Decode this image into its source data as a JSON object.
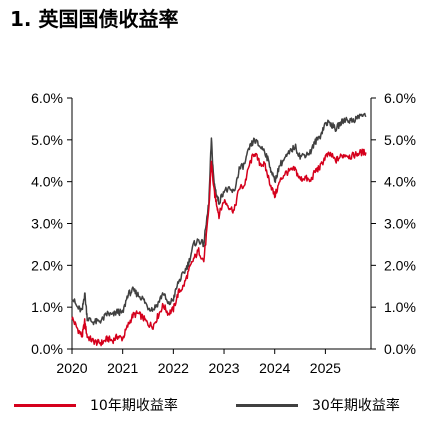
{
  "chart_data": {
    "type": "line",
    "title": "1. 英国国债收益率",
    "xlabel": "",
    "ylabel": "",
    "ylim": [
      0,
      6
    ],
    "xlim": [
      2020,
      2025.9
    ],
    "x_ticks": [
      "2020",
      "2021",
      "2022",
      "2023",
      "2024",
      "2025"
    ],
    "y_ticks_left": [
      "0.0%",
      "1.0%",
      "2.0%",
      "3.0%",
      "4.0%",
      "5.0%",
      "6.0%"
    ],
    "y_ticks_right": [
      "0.0%",
      "1.0%",
      "2.0%",
      "3.0%",
      "4.0%",
      "5.0%",
      "6.0%"
    ],
    "grid": false,
    "legend_position": "bottom",
    "x": [
      2020.0,
      2020.1,
      2020.2,
      2020.25,
      2020.3,
      2020.4,
      2020.5,
      2020.6,
      2020.7,
      2020.8,
      2020.9,
      2021.0,
      2021.1,
      2021.2,
      2021.3,
      2021.4,
      2021.5,
      2021.6,
      2021.7,
      2021.8,
      2021.9,
      2022.0,
      2022.1,
      2022.2,
      2022.3,
      2022.4,
      2022.5,
      2022.6,
      2022.7,
      2022.75,
      2022.8,
      2022.85,
      2022.9,
      2023.0,
      2023.1,
      2023.2,
      2023.3,
      2023.4,
      2023.5,
      2023.6,
      2023.7,
      2023.8,
      2023.9,
      2024.0,
      2024.1,
      2024.2,
      2024.3,
      2024.4,
      2024.5,
      2024.6,
      2024.7,
      2024.8,
      2024.9,
      2025.0,
      2025.1,
      2025.2,
      2025.3,
      2025.4,
      2025.5,
      2025.6,
      2025.7,
      2025.8
    ],
    "series": [
      {
        "name": "10年期收益率",
        "color": "#d5001c",
        "values": [
          0.75,
          0.5,
          0.3,
          0.65,
          0.3,
          0.2,
          0.15,
          0.15,
          0.25,
          0.2,
          0.3,
          0.25,
          0.55,
          0.8,
          0.85,
          0.75,
          0.6,
          0.55,
          0.8,
          1.05,
          0.85,
          0.95,
          1.35,
          1.5,
          1.85,
          2.15,
          2.35,
          2.1,
          3.3,
          4.5,
          3.8,
          3.5,
          3.2,
          3.55,
          3.4,
          3.3,
          3.85,
          3.9,
          4.4,
          4.7,
          4.45,
          4.4,
          4.0,
          3.65,
          4.0,
          4.2,
          4.25,
          4.3,
          4.05,
          4.1,
          4.0,
          4.25,
          4.35,
          4.6,
          4.65,
          4.5,
          4.6,
          4.65,
          4.6,
          4.65,
          4.7,
          4.7
        ]
      },
      {
        "name": "30年期收益率",
        "color": "#404040",
        "values": [
          1.25,
          1.0,
          0.9,
          1.35,
          0.75,
          0.65,
          0.65,
          0.7,
          0.85,
          0.8,
          0.9,
          0.85,
          1.3,
          1.4,
          1.3,
          1.2,
          1.0,
          0.95,
          1.1,
          1.35,
          1.05,
          1.2,
          1.6,
          1.8,
          2.05,
          2.5,
          2.6,
          2.5,
          3.5,
          5.0,
          4.0,
          3.7,
          3.5,
          3.8,
          3.8,
          3.75,
          4.3,
          4.4,
          4.8,
          5.0,
          4.85,
          4.75,
          4.4,
          4.0,
          4.4,
          4.55,
          4.7,
          4.85,
          4.6,
          4.65,
          4.7,
          4.95,
          5.1,
          5.4,
          5.4,
          5.25,
          5.4,
          5.5,
          5.45,
          5.5,
          5.6,
          5.55
        ]
      }
    ]
  }
}
